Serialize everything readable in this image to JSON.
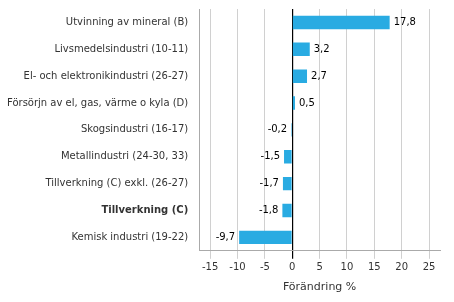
{
  "chart_data": {
    "type": "bar",
    "orientation": "horizontal",
    "categories": [
      "Kemisk industri (19-22)",
      "Tillverkning (C)",
      "Tillverkning (C) exkl. (26-27)",
      "Metallindustri (24-30, 33)",
      "Skogsindustri (16-17)",
      "Försörjn av el, gas, värme o kyla (D)",
      "El- och elektronikindustri (26-27)",
      "Livsmedelsindustri (10-11)",
      "Utvinning av mineral (B)"
    ],
    "values": [
      -9.7,
      -1.8,
      -1.7,
      -1.5,
      -0.2,
      0.5,
      2.7,
      3.2,
      17.8
    ],
    "value_labels": [
      "-9,7",
      "-1,8",
      "-1,7",
      "-1,5",
      "-0,2",
      "0,5",
      "2,7",
      "3,2",
      "17,8"
    ],
    "data_labels": true,
    "color": "#29abe2",
    "xlabel": "Förändring %",
    "xlim": [
      -17,
      27
    ],
    "xticks": [
      -15,
      -10,
      -5,
      0,
      5,
      10,
      15,
      20,
      25
    ],
    "grid": true
  }
}
